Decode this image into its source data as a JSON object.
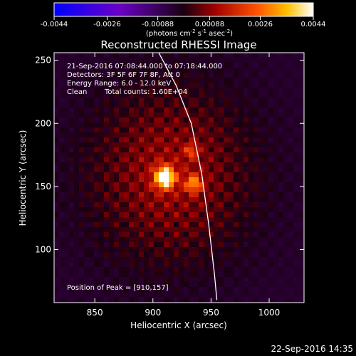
{
  "chart_data": {
    "type": "heatmap",
    "title": "Reconstructed RHESSI Image",
    "xlabel": "Heliocentric X (arcsec)",
    "ylabel": "Heliocentric Y (arcsec)",
    "xlim": [
      815,
      1030
    ],
    "ylim": [
      58,
      256
    ],
    "xticks": [
      850,
      900,
      950,
      1000
    ],
    "yticks": [
      100,
      150,
      200,
      250
    ],
    "colorbar": {
      "ticks": [
        "-0.0044",
        "-0.0026",
        "-0.00088",
        "0.00088",
        "0.0026",
        "0.0044"
      ],
      "tick_values": [
        -0.0044,
        -0.0026,
        -0.00088,
        0.00088,
        0.0026,
        0.0044
      ],
      "range": [
        -0.0044,
        0.0044
      ],
      "unit_prefix": "(photons cm",
      "unit_sup1": "-2",
      "unit_mid1": " s",
      "unit_sup2": "-1",
      "unit_mid2": " asec",
      "unit_sup3": "-2",
      "unit_suffix": ")"
    },
    "sources": [
      {
        "x": 910,
        "y": 157,
        "sigma": 6,
        "value": 0.0044
      },
      {
        "x": 935,
        "y": 152,
        "sigma": 5,
        "value": 0.0024
      },
      {
        "x": 933,
        "y": 178,
        "sigma": 4,
        "value": 0.0016
      }
    ],
    "limb": [
      {
        "x": 905,
        "y": 256
      },
      {
        "x": 920,
        "y": 230
      },
      {
        "x": 933,
        "y": 200
      },
      {
        "x": 942,
        "y": 160
      },
      {
        "x": 948,
        "y": 120
      },
      {
        "x": 953,
        "y": 80
      },
      {
        "x": 955,
        "y": 60
      }
    ],
    "info_lines": [
      "21-Sep-2016 07:08:44.000 to 07:18:44.000",
      "Detectors: 3F 5F 6F 7F 8F, Att 0",
      "Energy Range: 6.0 - 12.0 keV"
    ],
    "method": "Clean",
    "total_counts": "Total counts: 1.60E+04",
    "peak_label": "Position of Peak = [910,157]",
    "peak": {
      "x": 910,
      "y": 157
    }
  },
  "footer_timestamp": "22-Sep-2016 14:35"
}
